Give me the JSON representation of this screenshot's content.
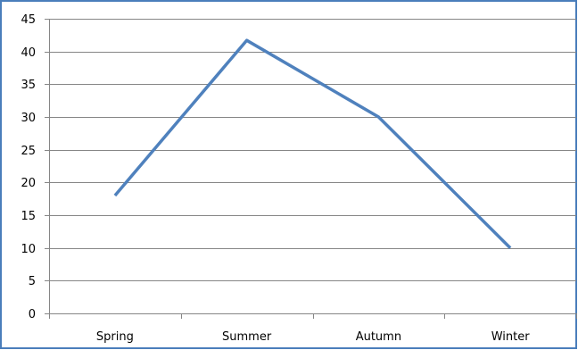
{
  "chart_data": {
    "type": "line",
    "title": "",
    "xlabel": "",
    "ylabel": "",
    "categories": [
      "Spring",
      "Summer",
      "Autumn",
      "Winter"
    ],
    "series": [
      {
        "values": [
          18,
          41.7,
          30,
          10
        ]
      }
    ],
    "ylim": [
      0,
      45
    ],
    "yticks": [
      0,
      5,
      10,
      15,
      20,
      25,
      30,
      35,
      40,
      45
    ],
    "grid": true,
    "legend": "none"
  },
  "colors": {
    "frame": "#4a7ebb",
    "line": "#4f81bd",
    "grid": "#868686",
    "axis": "#868686"
  }
}
